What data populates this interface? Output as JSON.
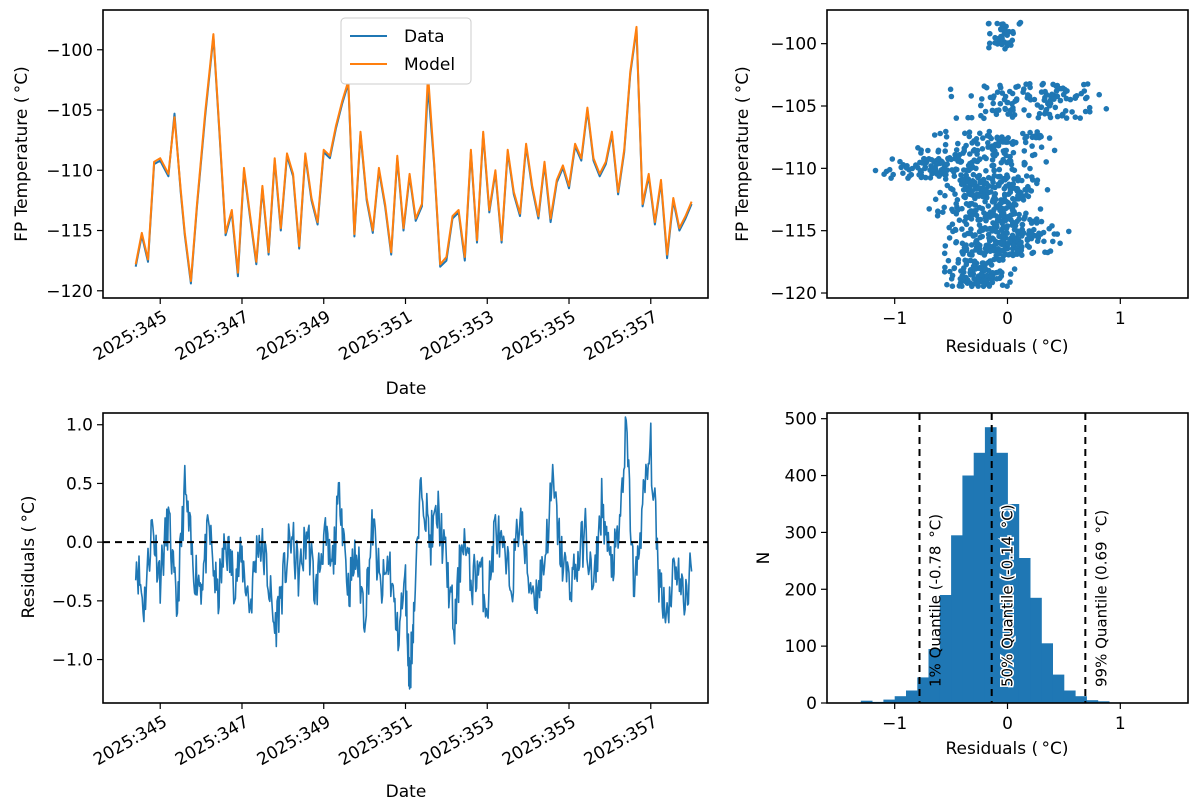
{
  "colors": {
    "data_blue": "#1f77b4",
    "model_orange": "#ff7f0e",
    "axis": "#000000",
    "background": "#ffffff"
  },
  "chart_data": [
    {
      "id": "timeseries",
      "type": "line",
      "title": "",
      "xlabel": "Date",
      "ylabel": "FP Temperature ($^\\circ$C)",
      "ylabel_display": "FP Temperature ( °C)",
      "x_tick_labels": [
        "2025:345",
        "2025:347",
        "2025:349",
        "2025:351",
        "2025:353",
        "2025:355",
        "2025:357"
      ],
      "x_ticks": [
        345,
        347,
        349,
        351,
        353,
        355,
        357
      ],
      "xlim": [
        343.6,
        358.4
      ],
      "ylim": [
        -120.6,
        -96.7
      ],
      "y_ticks": [
        -100,
        -105,
        -110,
        -115,
        -120
      ],
      "legend": {
        "placement": "top-center",
        "entries": [
          "Data",
          "Model"
        ]
      },
      "series": [
        {
          "name": "Data",
          "x": [
            344.4,
            344.55,
            344.7,
            344.85,
            345.0,
            345.2,
            345.35,
            345.5,
            345.6,
            345.75,
            345.9,
            346.1,
            346.3,
            346.45,
            346.6,
            346.75,
            346.9,
            347.05,
            347.2,
            347.35,
            347.5,
            347.65,
            347.8,
            347.95,
            348.1,
            348.25,
            348.4,
            348.55,
            348.7,
            348.85,
            349.0,
            349.15,
            349.3,
            349.45,
            349.6,
            349.75,
            349.9,
            350.05,
            350.2,
            350.35,
            350.5,
            350.65,
            350.8,
            350.95,
            351.1,
            351.25,
            351.4,
            351.55,
            351.7,
            351.85,
            352.0,
            352.15,
            352.3,
            352.45,
            352.6,
            352.75,
            352.9,
            353.05,
            353.2,
            353.35,
            353.5,
            353.65,
            353.8,
            353.95,
            354.1,
            354.25,
            354.4,
            354.55,
            354.7,
            354.85,
            355.0,
            355.15,
            355.3,
            355.45,
            355.6,
            355.75,
            355.9,
            356.05,
            356.2,
            356.35,
            356.5,
            356.65,
            356.8,
            356.95,
            357.1,
            357.25,
            357.4,
            357.55,
            357.7,
            357.85,
            358.0
          ],
          "y": [
            -118.0,
            -115.4,
            -117.6,
            -109.5,
            -109.2,
            -110.5,
            -105.3,
            -111.8,
            -115.4,
            -119.4,
            -113.0,
            -105.5,
            -98.9,
            -107.0,
            -115.4,
            -113.5,
            -118.8,
            -110.0,
            -114.0,
            -117.8,
            -111.5,
            -117.0,
            -109.2,
            -115.0,
            -108.8,
            -110.5,
            -116.5,
            -108.8,
            -112.5,
            -114.5,
            -108.5,
            -109.0,
            -106.5,
            -104.5,
            -102.8,
            -115.5,
            -107.0,
            -112.5,
            -115.2,
            -110.0,
            -113.0,
            -117.0,
            -109.0,
            -115.0,
            -110.5,
            -114.2,
            -113.0,
            -103.0,
            -109.5,
            -118.0,
            -117.5,
            -114.0,
            -113.5,
            -117.5,
            -108.5,
            -116.0,
            -107.0,
            -113.5,
            -110.2,
            -116.0,
            -108.5,
            -112.0,
            -113.8,
            -108.0,
            -111.5,
            -114.0,
            -109.5,
            -114.3,
            -111.0,
            -109.8,
            -111.5,
            -108.0,
            -109.2,
            -105.0,
            -109.2,
            -110.5,
            -109.5,
            -107.0,
            -112.0,
            -108.5,
            -102.0,
            -98.3,
            -113.0,
            -110.5,
            -114.5,
            -111.0,
            -117.3,
            -112.5,
            -115.0,
            -114.0,
            -112.8
          ]
        },
        {
          "name": "Model",
          "x": [
            344.4,
            344.55,
            344.7,
            344.85,
            345.0,
            345.2,
            345.35,
            345.5,
            345.6,
            345.75,
            345.9,
            346.1,
            346.3,
            346.45,
            346.6,
            346.75,
            346.9,
            347.05,
            347.2,
            347.35,
            347.5,
            347.65,
            347.8,
            347.95,
            348.1,
            348.25,
            348.4,
            348.55,
            348.7,
            348.85,
            349.0,
            349.15,
            349.3,
            349.45,
            349.6,
            349.75,
            349.9,
            350.05,
            350.2,
            350.35,
            350.5,
            350.65,
            350.8,
            350.95,
            351.1,
            351.25,
            351.4,
            351.55,
            351.7,
            351.85,
            352.0,
            352.15,
            352.3,
            352.45,
            352.6,
            352.75,
            352.9,
            353.05,
            353.2,
            353.35,
            353.5,
            353.65,
            353.8,
            353.95,
            354.1,
            354.25,
            354.4,
            354.55,
            354.7,
            354.85,
            355.0,
            355.15,
            355.3,
            355.45,
            355.6,
            355.75,
            355.9,
            356.05,
            356.2,
            356.35,
            356.5,
            356.65,
            356.8,
            356.95,
            357.1,
            357.25,
            357.4,
            357.55,
            357.7,
            357.85,
            358.0
          ],
          "y": [
            -117.8,
            -115.2,
            -117.4,
            -109.3,
            -109.0,
            -110.3,
            -105.6,
            -111.6,
            -115.2,
            -119.2,
            -112.8,
            -105.2,
            -98.7,
            -106.8,
            -115.2,
            -113.3,
            -118.5,
            -109.8,
            -113.8,
            -117.6,
            -111.3,
            -116.8,
            -109.0,
            -114.8,
            -108.6,
            -110.3,
            -116.3,
            -108.6,
            -112.3,
            -114.3,
            -108.3,
            -108.8,
            -106.3,
            -104.3,
            -102.6,
            -115.3,
            -106.8,
            -112.3,
            -115.0,
            -109.8,
            -112.8,
            -116.8,
            -108.8,
            -114.8,
            -110.3,
            -114.0,
            -112.8,
            -102.0,
            -109.3,
            -117.8,
            -117.2,
            -113.8,
            -113.3,
            -117.2,
            -108.3,
            -115.8,
            -106.8,
            -113.3,
            -110.0,
            -115.8,
            -108.3,
            -111.8,
            -113.6,
            -107.8,
            -111.3,
            -113.8,
            -109.3,
            -114.0,
            -110.8,
            -109.6,
            -111.3,
            -107.8,
            -109.0,
            -104.8,
            -109.0,
            -110.3,
            -109.3,
            -106.8,
            -111.8,
            -108.3,
            -101.8,
            -98.1,
            -112.8,
            -110.3,
            -114.3,
            -110.8,
            -117.0,
            -112.3,
            -114.8,
            -113.8,
            -112.6
          ]
        }
      ]
    },
    {
      "id": "scatter",
      "type": "scatter",
      "title": "",
      "xlabel": "Residuals ($^\\circ$C)",
      "xlabel_display": "Residuals ( °C)",
      "ylabel": "FP Temperature ($^\\circ$C)",
      "ylabel_display": "FP Temperature ( °C)",
      "x_ticks": [
        -1,
        0,
        1
      ],
      "y_ticks": [
        -100,
        -105,
        -110,
        -115,
        -120
      ],
      "xlim": [
        -1.6,
        1.6
      ],
      "ylim": [
        -120.4,
        -97.3
      ],
      "clusters": [
        {
          "x_range": [
            -0.25,
            0.15
          ],
          "y_range": [
            -100.5,
            -98.2
          ],
          "count": 40
        },
        {
          "x_range": [
            -0.6,
            1.0
          ],
          "y_range": [
            -106.0,
            -103.2
          ],
          "count": 130
        },
        {
          "x_range": [
            -0.9,
            0.6
          ],
          "y_range": [
            -110.2,
            -107.0
          ],
          "count": 140
        },
        {
          "x_range": [
            -1.3,
            0.0
          ],
          "y_range": [
            -110.8,
            -109.2
          ],
          "count": 90
        },
        {
          "x_range": [
            -0.8,
            0.5
          ],
          "y_range": [
            -114.5,
            -110.5
          ],
          "count": 260
        },
        {
          "x_range": [
            -0.7,
            0.6
          ],
          "y_range": [
            -117.0,
            -114.5
          ],
          "count": 200
        },
        {
          "x_range": [
            -0.7,
            0.2
          ],
          "y_range": [
            -119.5,
            -117.3
          ],
          "count": 110
        }
      ]
    },
    {
      "id": "residuals",
      "type": "line",
      "title": "",
      "xlabel": "Date",
      "ylabel": "Residuals ($^\\circ$C)",
      "ylabel_display": "Residuals ( °C)",
      "x_tick_labels": [
        "2025:345",
        "2025:347",
        "2025:349",
        "2025:351",
        "2025:353",
        "2025:355",
        "2025:357"
      ],
      "x_ticks": [
        345,
        347,
        349,
        351,
        353,
        355,
        357
      ],
      "xlim": [
        343.6,
        358.4
      ],
      "ylim": [
        -1.37,
        1.1
      ],
      "y_ticks": [
        1.0,
        0.5,
        0.0,
        -0.5,
        -1.0
      ],
      "reference_line": {
        "y": 0.0,
        "style": "dashed",
        "color": "#000000"
      },
      "series": [
        {
          "name": "Residuals",
          "x": [
            344.4,
            344.6,
            344.8,
            345.0,
            345.2,
            345.4,
            345.6,
            345.8,
            346.0,
            346.2,
            346.4,
            346.6,
            346.8,
            347.0,
            347.2,
            347.4,
            347.6,
            347.8,
            348.0,
            348.2,
            348.4,
            348.6,
            348.8,
            349.0,
            349.2,
            349.4,
            349.6,
            349.8,
            350.0,
            350.2,
            350.4,
            350.6,
            350.8,
            351.0,
            351.1,
            351.2,
            351.4,
            351.6,
            351.8,
            352.0,
            352.2,
            352.4,
            352.6,
            352.8,
            353.0,
            353.2,
            353.4,
            353.6,
            353.8,
            354.0,
            354.2,
            354.4,
            354.6,
            354.8,
            355.0,
            355.2,
            355.4,
            355.6,
            355.8,
            356.0,
            356.2,
            356.4,
            356.6,
            356.8,
            357.0,
            357.2,
            357.4,
            357.6,
            357.8,
            358.0
          ],
          "y": [
            -0.1,
            -0.55,
            0.15,
            -0.3,
            0.2,
            -0.6,
            0.45,
            -0.2,
            -0.35,
            0.1,
            -0.5,
            0.0,
            -0.3,
            -0.15,
            -0.55,
            0.05,
            -0.2,
            -0.75,
            -0.35,
            0.05,
            -0.3,
            0.1,
            -0.45,
            0.05,
            -0.25,
            0.45,
            -0.4,
            -0.1,
            -0.6,
            0.15,
            -0.45,
            -0.15,
            -0.8,
            -0.35,
            -1.2,
            -0.6,
            0.55,
            0.0,
            0.25,
            -0.2,
            -0.75,
            0.1,
            -0.35,
            -0.2,
            -0.55,
            0.15,
            -0.15,
            -0.35,
            0.25,
            -0.3,
            -0.45,
            -0.15,
            0.5,
            -0.1,
            -0.35,
            -0.2,
            0.1,
            -0.45,
            0.35,
            -0.2,
            -0.05,
            0.95,
            -0.45,
            0.3,
            0.8,
            -0.3,
            -0.6,
            -0.15,
            -0.5,
            -0.25
          ]
        }
      ]
    },
    {
      "id": "histogram",
      "type": "bar",
      "title": "",
      "xlabel": "Residuals ($^\\circ$C)",
      "xlabel_display": "Residuals ( °C)",
      "ylabel": "N",
      "x_ticks": [
        -1,
        0,
        1
      ],
      "y_ticks": [
        0,
        100,
        200,
        300,
        400,
        500
      ],
      "xlim": [
        -1.6,
        1.6
      ],
      "ylim": [
        0,
        510
      ],
      "bin_edges": [
        -1.3,
        -1.2,
        -1.1,
        -1.0,
        -0.9,
        -0.8,
        -0.7,
        -0.6,
        -0.5,
        -0.4,
        -0.3,
        -0.2,
        -0.1,
        0.0,
        0.1,
        0.2,
        0.3,
        0.4,
        0.5,
        0.6,
        0.7,
        0.8,
        0.9,
        1.0
      ],
      "counts": [
        4,
        2,
        6,
        12,
        22,
        45,
        95,
        190,
        295,
        400,
        440,
        485,
        440,
        350,
        255,
        185,
        105,
        50,
        22,
        12,
        5,
        3,
        1
      ],
      "quantiles": [
        {
          "label": "1% Quantile (-0.78 $^\\circ$C)",
          "display": "1% Quantile (-0.78  °C)",
          "value": -0.78
        },
        {
          "label": "50% Quantile (-0.14 $^\\circ$C)",
          "display": "50% Quantile (-0.14  °C)",
          "value": -0.14
        },
        {
          "label": "99% Quantile (0.69 $^\\circ$C)",
          "display": "99% Quantile (0.69  °C)",
          "value": 0.69
        }
      ]
    }
  ]
}
